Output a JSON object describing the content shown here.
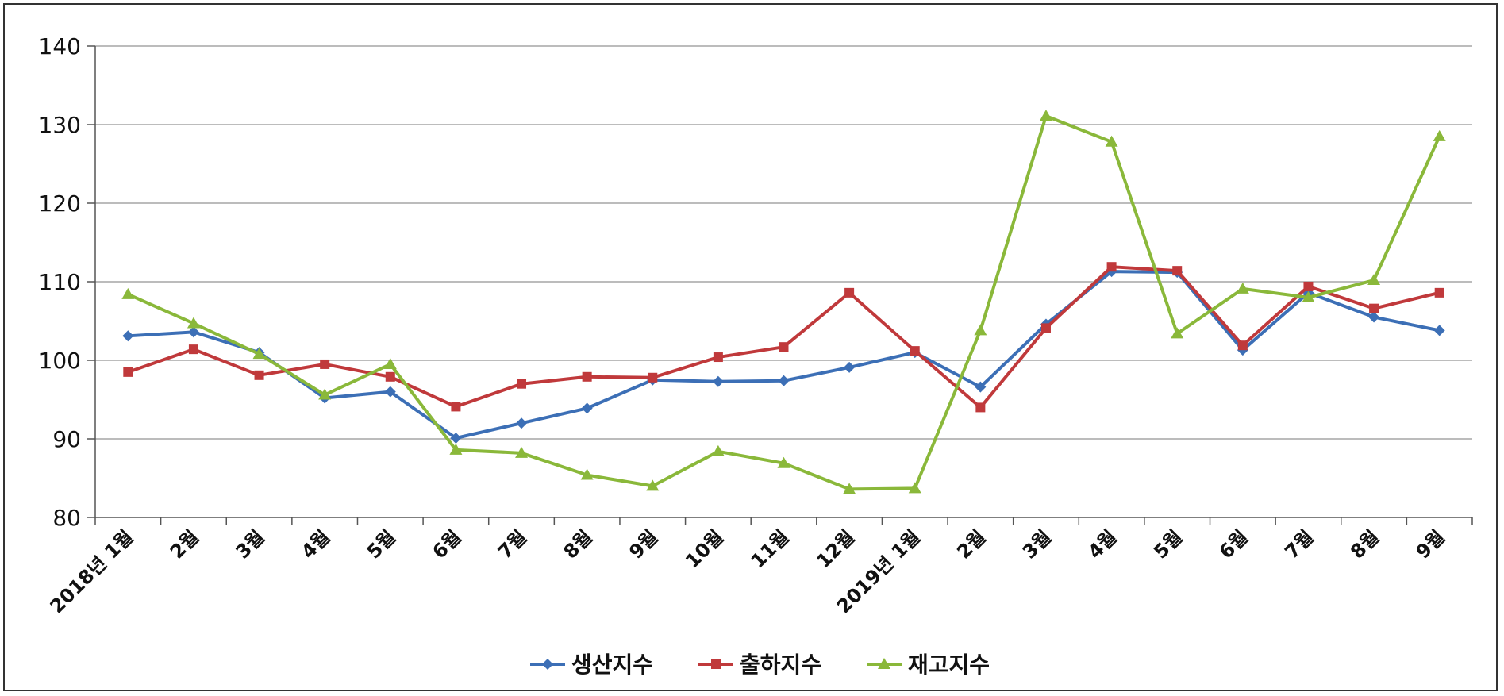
{
  "chart_data": {
    "type": "line",
    "categories": [
      "2018년 1월",
      "2월",
      "3월",
      "4월",
      "5월",
      "6월",
      "7월",
      "8월",
      "9월",
      "10월",
      "11월",
      "12월",
      "2019년 1월",
      "2월",
      "3월",
      "4월",
      "5월",
      "6월",
      "7월",
      "8월",
      "9월"
    ],
    "series": [
      {
        "name": "생산지수",
        "color": "#3c6fb6",
        "marker": "diamond",
        "values": [
          103.1,
          103.6,
          101.0,
          95.2,
          96.0,
          90.1,
          92.0,
          93.9,
          97.5,
          97.3,
          97.4,
          99.1,
          101.0,
          96.6,
          104.6,
          111.3,
          111.2,
          101.3,
          108.6,
          105.5,
          103.8
        ]
      },
      {
        "name": "출하지수",
        "color": "#c0393b",
        "marker": "square",
        "values": [
          98.5,
          101.4,
          98.1,
          99.5,
          97.9,
          94.1,
          97.0,
          97.9,
          97.8,
          100.4,
          101.7,
          108.6,
          101.2,
          94.0,
          104.1,
          111.9,
          111.4,
          101.9,
          109.4,
          106.6,
          108.6
        ]
      },
      {
        "name": "재고지수",
        "color": "#8ab83a",
        "marker": "triangle",
        "values": [
          108.4,
          104.7,
          100.8,
          95.6,
          99.5,
          88.6,
          88.2,
          85.4,
          84.0,
          88.4,
          86.9,
          83.6,
          83.7,
          103.8,
          131.1,
          127.8,
          103.4,
          109.1,
          108.0,
          110.2,
          128.5
        ]
      }
    ],
    "ylim": [
      80,
      140
    ],
    "yticks": [
      80,
      90,
      100,
      110,
      120,
      130,
      140
    ],
    "grid": true,
    "legend": "bottom"
  }
}
